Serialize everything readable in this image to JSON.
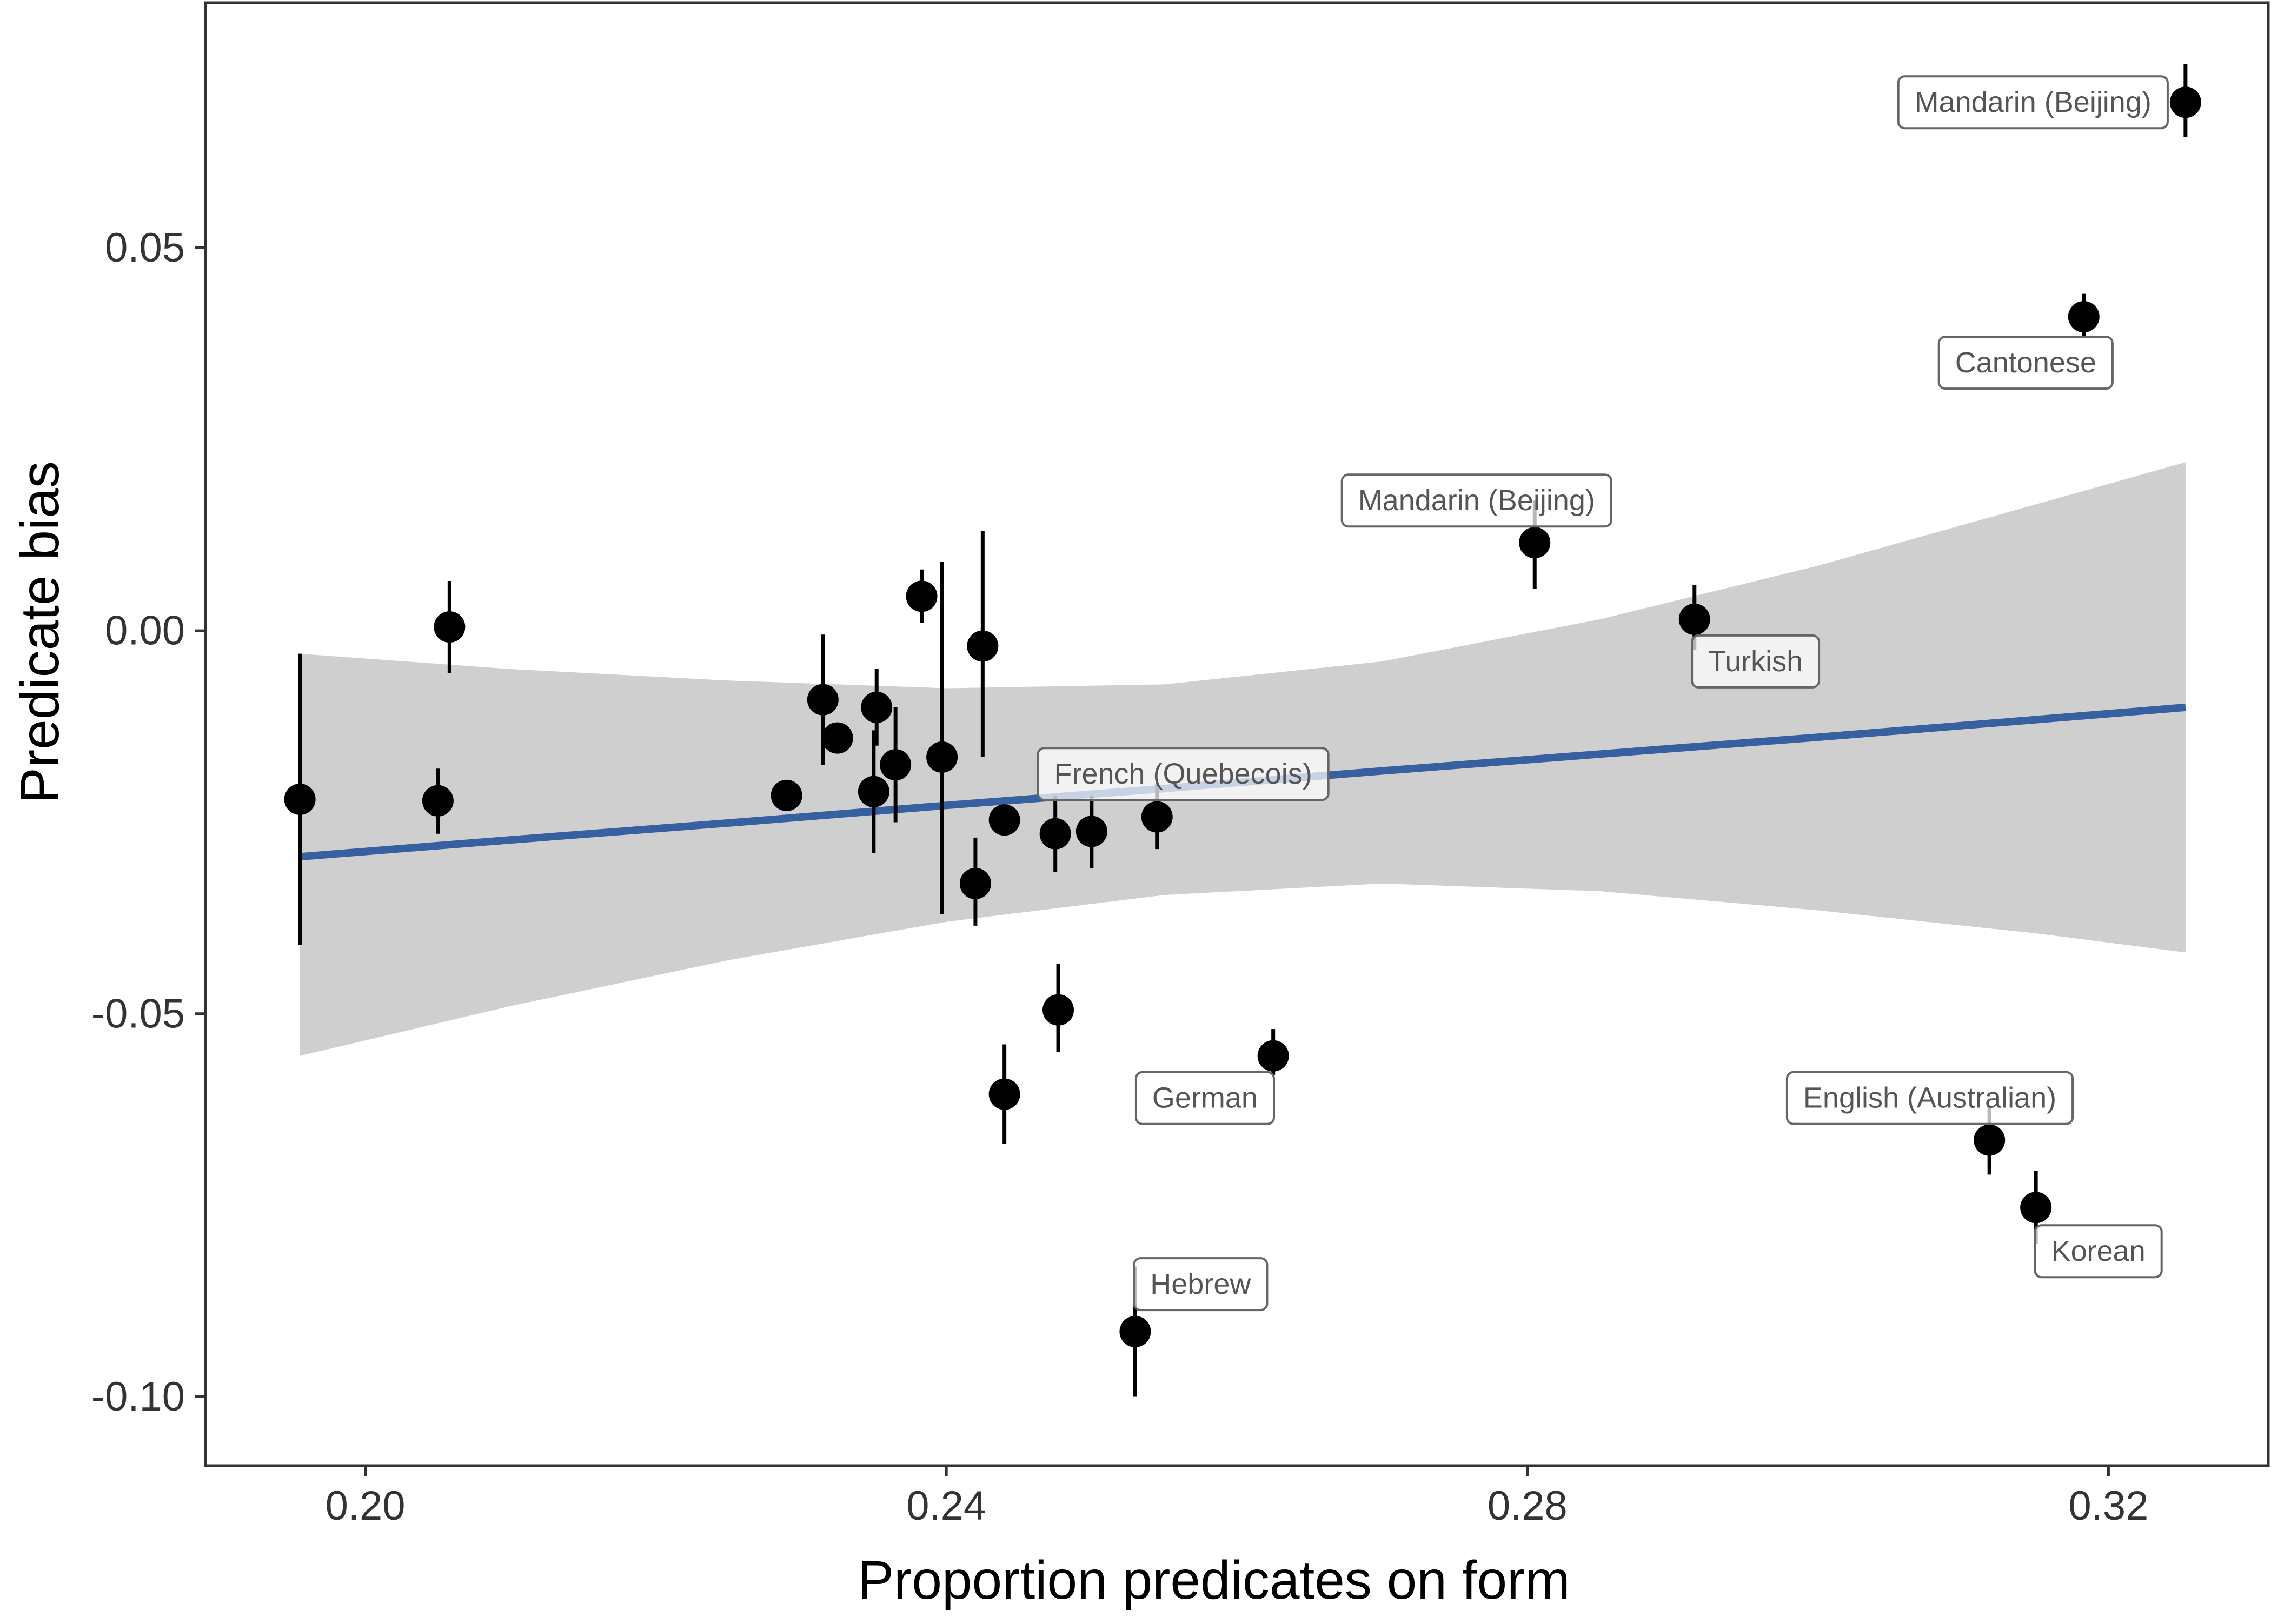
{
  "chart_data": {
    "type": "scatter",
    "title": "",
    "xlabel": "Proportion predicates on form",
    "ylabel": "Predicate bias",
    "xlim": [
      0.189,
      0.331
    ],
    "ylim": [
      -0.109,
      0.082
    ],
    "x_ticks": [
      0.2,
      0.24,
      0.28,
      0.32
    ],
    "x_tick_labels": [
      "0.20",
      "0.24",
      "0.28",
      "0.32"
    ],
    "y_ticks": [
      -0.1,
      -0.05,
      0.0,
      0.05
    ],
    "y_tick_labels": [
      "-0.10",
      "-0.05",
      "0.00",
      "0.05"
    ],
    "grid": false,
    "colors": {
      "points": "#000000",
      "fit_line": "#36609f",
      "ribbon": "#cccccc",
      "label_border": "#666666",
      "label_text": "#555555"
    },
    "points": [
      {
        "x": 0.1955,
        "y": -0.022,
        "lo": -0.041,
        "hi": -0.003
      },
      {
        "x": 0.205,
        "y": -0.0222,
        "lo": -0.0265,
        "hi": -0.018
      },
      {
        "x": 0.2058,
        "y": 0.0005,
        "lo": -0.0055,
        "hi": 0.0065
      },
      {
        "x": 0.229,
        "y": -0.0215,
        "lo": -0.023,
        "hi": -0.02
      },
      {
        "x": 0.2315,
        "y": -0.009,
        "lo": -0.0175,
        "hi": -0.0005
      },
      {
        "x": 0.2325,
        "y": -0.014,
        "lo": -0.0155,
        "hi": -0.0125
      },
      {
        "x": 0.235,
        "y": -0.021,
        "lo": -0.029,
        "hi": -0.013
      },
      {
        "x": 0.2352,
        "y": -0.01,
        "lo": -0.015,
        "hi": -0.005
      },
      {
        "x": 0.2365,
        "y": -0.0175,
        "lo": -0.025,
        "hi": -0.01
      },
      {
        "x": 0.2383,
        "y": 0.0045,
        "lo": 0.001,
        "hi": 0.008
      },
      {
        "x": 0.2397,
        "y": -0.0165,
        "lo": -0.037,
        "hi": 0.009
      },
      {
        "x": 0.242,
        "y": -0.033,
        "lo": -0.0385,
        "hi": -0.027
      },
      {
        "x": 0.2425,
        "y": -0.002,
        "lo": -0.0165,
        "hi": 0.013
      },
      {
        "x": 0.244,
        "y": -0.0247,
        "lo": -0.0262,
        "hi": -0.0232
      },
      {
        "x": 0.244,
        "y": -0.0605,
        "lo": -0.067,
        "hi": -0.054
      },
      {
        "x": 0.2475,
        "y": -0.0265,
        "lo": -0.0315,
        "hi": -0.0215
      },
      {
        "x": 0.2477,
        "y": -0.0495,
        "lo": -0.055,
        "hi": -0.0435
      },
      {
        "x": 0.25,
        "y": -0.0262,
        "lo": -0.031,
        "hi": -0.0215
      },
      {
        "x": 0.253,
        "y": -0.0915,
        "lo": -0.1,
        "hi": -0.083
      },
      {
        "x": 0.2545,
        "y": -0.0243,
        "lo": -0.0285,
        "hi": -0.02
      },
      {
        "x": 0.2625,
        "y": -0.0555,
        "lo": -0.058,
        "hi": -0.052
      },
      {
        "x": 0.2805,
        "y": 0.0115,
        "lo": 0.0055,
        "hi": 0.017
      },
      {
        "x": 0.2915,
        "y": 0.0015,
        "lo": -0.0025,
        "hi": 0.006
      },
      {
        "x": 0.3118,
        "y": -0.0665,
        "lo": -0.071,
        "hi": -0.062
      },
      {
        "x": 0.315,
        "y": -0.0753,
        "lo": -0.08,
        "hi": -0.0705
      },
      {
        "x": 0.3183,
        "y": 0.041,
        "lo": 0.0385,
        "hi": 0.044
      },
      {
        "x": 0.3253,
        "y": 0.069,
        "lo": 0.0645,
        "hi": 0.074
      }
    ],
    "fit": {
      "x": [
        0.1955,
        0.21,
        0.225,
        0.24,
        0.255,
        0.27,
        0.285,
        0.3,
        0.315,
        0.3253
      ],
      "y": [
        -0.0295,
        -0.0273,
        -0.0251,
        -0.0228,
        -0.0206,
        -0.0183,
        -0.0161,
        -0.0139,
        -0.0116,
        -0.01
      ],
      "ymin": [
        -0.0555,
        -0.049,
        -0.043,
        -0.038,
        -0.0345,
        -0.033,
        -0.034,
        -0.0365,
        -0.0395,
        -0.042
      ],
      "ymax": [
        -0.003,
        -0.005,
        -0.0065,
        -0.0075,
        -0.007,
        -0.004,
        0.0015,
        0.0085,
        0.0165,
        0.022
      ]
    },
    "labels": [
      {
        "text": "Mandarin (Beijing)",
        "x": 0.3148,
        "y": 0.069
      },
      {
        "text": "Cantonese",
        "x": 0.3143,
        "y": 0.035
      },
      {
        "text": "Mandarin (Beijing)",
        "x": 0.2765,
        "y": 0.017
      },
      {
        "text": "Turkish",
        "x": 0.2957,
        "y": -0.004
      },
      {
        "text": "French (Quebecois)",
        "x": 0.2563,
        "y": -0.0187
      },
      {
        "text": "German",
        "x": 0.2578,
        "y": -0.061
      },
      {
        "text": "English (Australian)",
        "x": 0.3077,
        "y": -0.061
      },
      {
        "text": "Korean",
        "x": 0.3193,
        "y": -0.081
      },
      {
        "text": "Hebrew",
        "x": 0.2575,
        "y": -0.0853
      }
    ]
  }
}
